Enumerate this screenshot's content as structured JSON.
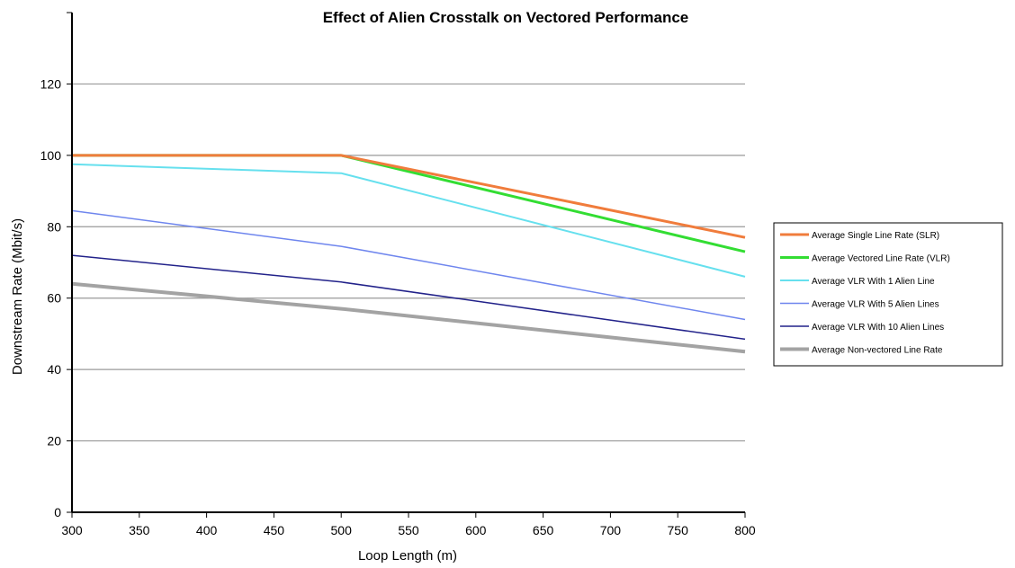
{
  "chart_data": {
    "type": "line",
    "title": "Effect of Alien Crosstalk on Vectored Performance",
    "xlabel": "Loop Length (m)",
    "ylabel": "Downstream Rate (Mbit/s)",
    "xlim": [
      300,
      800
    ],
    "ylim": [
      0,
      140
    ],
    "xticks": [
      300,
      350,
      400,
      450,
      500,
      550,
      600,
      650,
      700,
      750,
      800
    ],
    "yticks": [
      0,
      20,
      40,
      60,
      80,
      100,
      120
    ],
    "grid": "horizontal",
    "legend_position": "right",
    "series": [
      {
        "name": "Average Single Line Rate (SLR)",
        "color": "#f07c3c",
        "x": [
          300,
          500,
          800
        ],
        "values": [
          100,
          100,
          77
        ]
      },
      {
        "name": "Average Vectored Line Rate (VLR)",
        "color": "#33dd33",
        "x": [
          300,
          500,
          800
        ],
        "values": [
          100,
          100,
          73
        ]
      },
      {
        "name": "Average VLR With 1 Alien Line",
        "color": "#66e0ee",
        "x": [
          300,
          500,
          800
        ],
        "values": [
          97.5,
          95,
          66
        ]
      },
      {
        "name": "Average VLR With 5 Alien Lines",
        "color": "#6f86ee",
        "x": [
          300,
          500,
          800
        ],
        "values": [
          84.5,
          74.5,
          54
        ]
      },
      {
        "name": "Average VLR With 10 Alien Lines",
        "color": "#22228a",
        "x": [
          300,
          500,
          800
        ],
        "values": [
          72,
          64.5,
          48.5
        ]
      },
      {
        "name": "Average Non-vectored Line Rate",
        "color": "#a3a3a3",
        "x": [
          300,
          500,
          800
        ],
        "values": [
          64,
          57,
          45
        ]
      }
    ]
  }
}
